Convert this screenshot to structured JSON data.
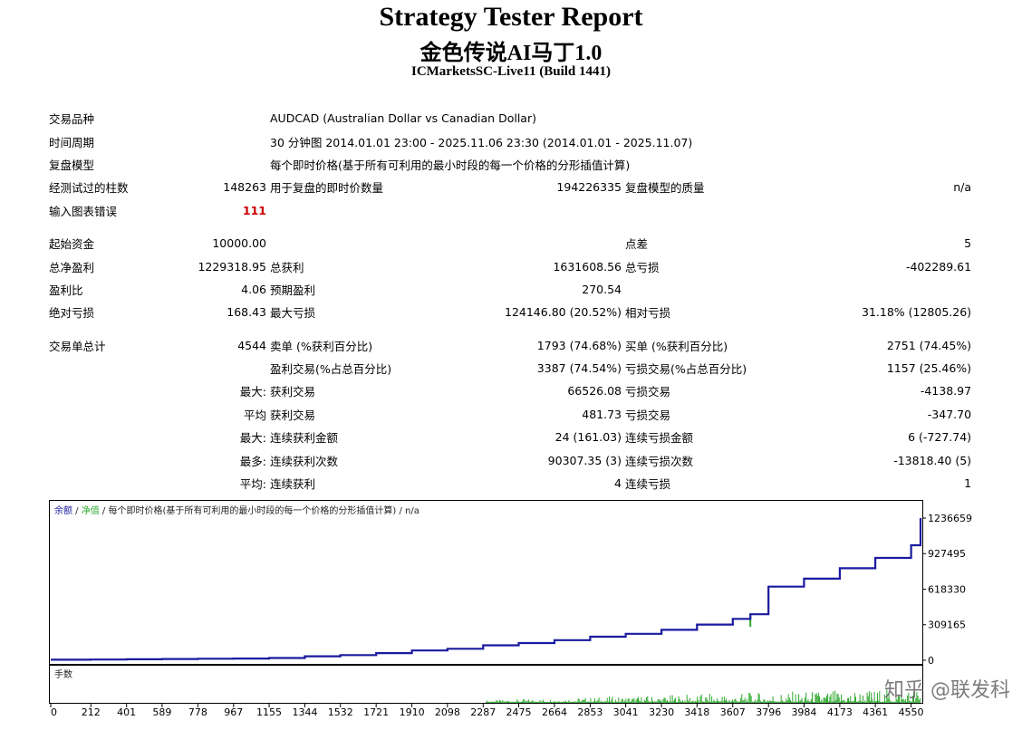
{
  "header": {
    "title": "Strategy Tester Report",
    "ea_name": "金色传说AI马丁1.0",
    "server": "ICMarketsSC-Live11 (Build 1441)"
  },
  "settings": {
    "symbol_label": "交易品种",
    "symbol_value": "AUDCAD (Australian Dollar vs Canadian Dollar)",
    "period_label": "时间周期",
    "period_value": "30 分钟图 2014.01.01 23:00 - 2025.11.06 23:30 (2014.01.01 - 2025.11.07)",
    "model_label": "复盘模型",
    "model_value": "每个即时价格(基于所有可利用的最小时段的每一个价格的分形插值计算)",
    "bars_label": "经测试过的柱数",
    "bars_value": "148263",
    "ticks_label": "用于复盘的即时价数量",
    "ticks_value": "194226335",
    "quality_label": "复盘模型的质量",
    "quality_value": "n/a",
    "errors_label": "输入图表错误",
    "errors_value": "111"
  },
  "results": {
    "deposit_label": "起始资金",
    "deposit_value": "10000.00",
    "spread_label": "点差",
    "spread_value": "5",
    "net_profit_label": "总净盈利",
    "net_profit_value": "1229318.95",
    "gross_profit_label": "总获利",
    "gross_profit_value": "1631608.56",
    "gross_loss_label": "总亏损",
    "gross_loss_value": "-402289.61",
    "profit_factor_label": "盈利比",
    "profit_factor_value": "4.06",
    "expected_payoff_label": "预期盈利",
    "expected_payoff_value": "270.54",
    "abs_dd_label": "绝对亏损",
    "abs_dd_value": "168.43",
    "max_dd_label": "最大亏损",
    "max_dd_value": "124146.80 (20.52%)",
    "rel_dd_label": "相对亏损",
    "rel_dd_value": "31.18% (12805.26)",
    "total_trades_label": "交易单总计",
    "total_trades_value": "4544",
    "short_label": "卖单 (%获利百分比)",
    "short_value": "1793 (74.68%)",
    "long_label": "买单 (%获利百分比)",
    "long_value": "2751 (74.45%)",
    "profit_trades_label": "盈利交易(%占总百分比)",
    "profit_trades_value": "3387 (74.54%)",
    "loss_trades_label": "亏损交易(%占总百分比)",
    "loss_trades_value": "1157 (25.46%)",
    "largest_prefix": "最大:",
    "largest_profit_label": "获利交易",
    "largest_profit_value": "66526.08",
    "largest_loss_label": "亏损交易",
    "largest_loss_value": "-4138.97",
    "average_prefix": "平均",
    "average_profit_label": "获利交易",
    "average_profit_value": "481.73",
    "average_loss_label": "亏损交易",
    "average_loss_value": "-347.70",
    "max_prefix": "最大:",
    "max_consec_wins_label": "连续获利金额",
    "max_consec_wins_value": "24 (161.03)",
    "max_consec_losses_label": "连续亏损金额",
    "max_consec_losses_value": "6 (-727.74)",
    "maximal_prefix": "最多:",
    "maximal_consec_profit_label": "连续获利次数",
    "maximal_consec_profit_value": "90307.35 (3)",
    "maximal_consec_loss_label": "连续亏损次数",
    "maximal_consec_loss_value": "-13818.40 (5)",
    "avg_consec_prefix": "平均:",
    "avg_consec_wins_label": "连续获利",
    "avg_consec_wins_value": "4",
    "avg_consec_losses_label": "连续亏损",
    "avg_consec_losses_value": "1"
  },
  "chart_data": [
    {
      "type": "line",
      "legend": {
        "balance": "余额",
        "sep1": " / ",
        "equity": "净值",
        "rest": " / 每个即时价格(基于所有可利用的最小时段的每一个价格的分形插值计算) / n/a"
      },
      "series": [
        {
          "name": "余额",
          "color": "#1a1aa0",
          "x": [
            0,
            212,
            401,
            589,
            778,
            967,
            1155,
            1344,
            1532,
            1721,
            1910,
            2098,
            2287,
            2475,
            2664,
            2853,
            3041,
            3230,
            3418,
            3607,
            3700,
            3796,
            3984,
            4173,
            4361,
            4550,
            4600
          ],
          "y": [
            5000,
            6500,
            8500,
            11000,
            13000,
            15000,
            20000,
            35000,
            45000,
            62000,
            85000,
            100000,
            130000,
            150000,
            175000,
            205000,
            230000,
            265000,
            310000,
            360000,
            400000,
            640000,
            710000,
            800000,
            890000,
            1000000,
            1236659
          ]
        }
      ],
      "equity_dips_x": [
        3700,
        4550
      ],
      "y_ticks": [
        "1236659",
        "927495",
        "618330",
        "309165",
        "0"
      ],
      "ylim": [
        0,
        1236659
      ],
      "xlim": [
        0,
        4600
      ],
      "grid": false
    },
    {
      "type": "bar",
      "legend": "手数",
      "x_ticks": [
        "0",
        "212",
        "401",
        "589",
        "778",
        "967",
        "1155",
        "1344",
        "1532",
        "1721",
        "1910",
        "2098",
        "2287",
        "2475",
        "2664",
        "2853",
        "3041",
        "3230",
        "3418",
        "3607",
        "3796",
        "3984",
        "4173",
        "4361",
        "4550"
      ],
      "color": "#2faa2f"
    }
  ],
  "watermark": "知乎 @联发科"
}
